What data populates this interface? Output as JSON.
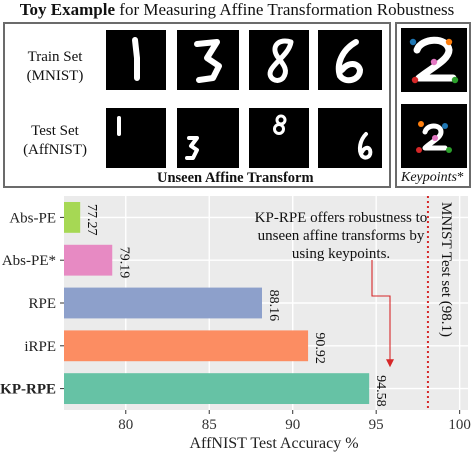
{
  "title": {
    "bold": "Toy Example",
    "rest": " for Measuring Affine Transformation Robustness"
  },
  "panel": {
    "train_label_1": "Train Set",
    "train_label_2": "(MNIST)",
    "test_label_1": "Test Set",
    "test_label_2": "(AffNIST)",
    "caption": "Unseen Affine Transform",
    "keypoints_label": "Keypoints",
    "keypoints_star": "*"
  },
  "train_digits": [
    "1",
    "3",
    "8",
    "6"
  ],
  "test_digits": [
    "1",
    "3",
    "8",
    "6"
  ],
  "keypoint_digits": [
    "2",
    "2"
  ],
  "colors": {
    "bar_colors": [
      "#a6d854",
      "#e78ac3",
      "#8da0cb",
      "#fc8d62",
      "#66c2a5"
    ],
    "ref_line": "#d62728",
    "plot_bg": "#ebebeb",
    "grid": "#ffffff",
    "annotation_arrow": "#d62728",
    "keypoint_colors": [
      "#1f77b4",
      "#ff7f0e",
      "#2ca02c",
      "#d62728",
      "#e377c2"
    ]
  },
  "chart_data": {
    "type": "bar",
    "orientation": "horizontal",
    "categories": [
      "Abs-PE",
      "Abs-PE*",
      "RPE",
      "iRPE",
      "KP-RPE"
    ],
    "bold_categories": [
      "KP-RPE"
    ],
    "values": [
      77.27,
      79.19,
      88.16,
      90.92,
      94.58
    ],
    "value_labels": [
      "77.27",
      "79.19",
      "88.16",
      "90.92",
      "94.58"
    ],
    "xlabel": "AffNIST Test Accuracy %",
    "xlim": [
      76.3,
      100.5
    ],
    "xticks": [
      80,
      85,
      90,
      95,
      100
    ],
    "xtick_labels": [
      "80",
      "85",
      "90",
      "95",
      "100"
    ],
    "reference_line": {
      "value": 98.1,
      "label": "MNIST Test set (98.1)",
      "style": "dotted"
    },
    "annotation": {
      "lines": [
        "KP-RPE offers robustness to",
        "unseen affine transforms by",
        "using keypoints."
      ],
      "points_to": "KP-RPE"
    },
    "grid": true
  }
}
